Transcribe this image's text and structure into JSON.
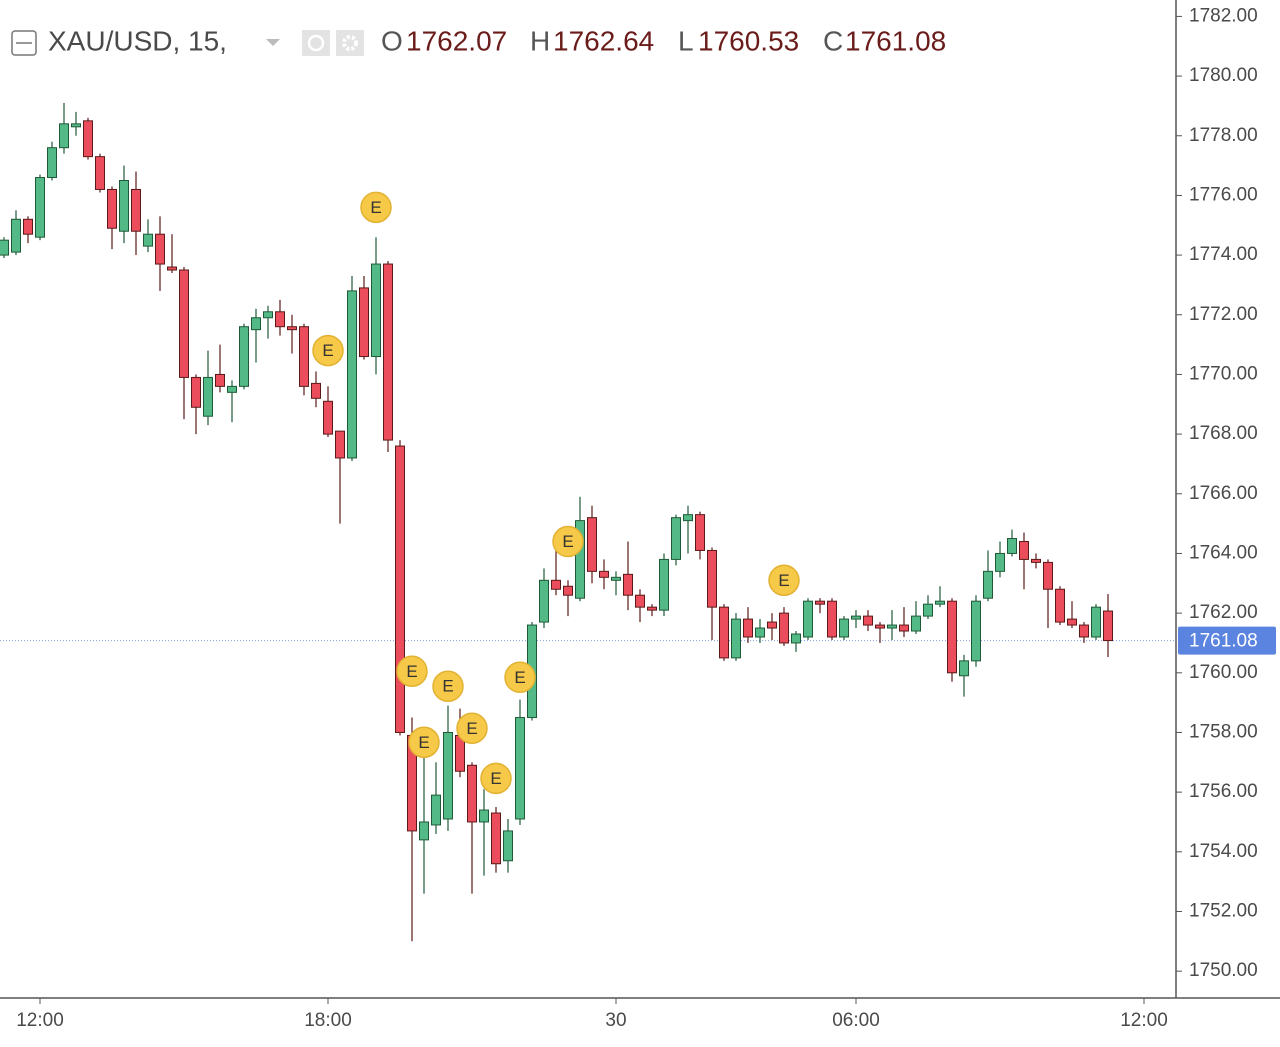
{
  "chart_data": {
    "type": "candlestick",
    "legend": {
      "symbol": "XAU/USD, 15,",
      "items": [
        {
          "label": "O",
          "value": 1762.07
        },
        {
          "label": "H",
          "value": 1762.64
        },
        {
          "label": "L",
          "value": 1760.53
        },
        {
          "label": "C",
          "value": 1761.08
        }
      ]
    },
    "last_price": 1761.08,
    "up_color": "#53b987",
    "down_color": "#eb4d5c",
    "ylim": [
      1749.1,
      1782.55
    ],
    "yticks": [
      {
        "value": 1750,
        "label": "1750.00"
      },
      {
        "value": 1752,
        "label": "1752.00"
      },
      {
        "value": 1754,
        "label": "1754.00"
      },
      {
        "value": 1756,
        "label": "1756.00"
      },
      {
        "value": 1758,
        "label": "1758.00"
      },
      {
        "value": 1760,
        "label": "1760.00"
      },
      {
        "value": 1762,
        "label": "1762.00"
      },
      {
        "value": 1764,
        "label": "1764.00"
      },
      {
        "value": 1766,
        "label": "1766.00"
      },
      {
        "value": 1768,
        "label": "1768.00"
      },
      {
        "value": 1770,
        "label": "1770.00"
      },
      {
        "value": 1772,
        "label": "1772.00"
      },
      {
        "value": 1774,
        "label": "1774.00"
      },
      {
        "value": 1776,
        "label": "1776.00"
      },
      {
        "value": 1778,
        "label": "1778.00"
      },
      {
        "value": 1780,
        "label": "1780.00"
      },
      {
        "value": 1782,
        "label": "1782.00"
      }
    ],
    "categories": [
      null,
      null,
      null,
      "12:00",
      null,
      null,
      null,
      null,
      null,
      null,
      null,
      null,
      null,
      null,
      null,
      null,
      null,
      null,
      null,
      null,
      null,
      null,
      null,
      null,
      null,
      null,
      null,
      "18:00",
      null,
      null,
      null,
      null,
      null,
      null,
      null,
      null,
      null,
      null,
      null,
      null,
      null,
      null,
      null,
      null,
      null,
      null,
      null,
      null,
      null,
      null,
      null,
      "30",
      null,
      null,
      null,
      null,
      null,
      null,
      null,
      null,
      null,
      null,
      null,
      null,
      null,
      null,
      null,
      null,
      null,
      null,
      null,
      "06:00",
      null,
      null,
      null,
      null,
      null,
      null,
      null,
      null,
      null,
      null,
      null,
      null,
      null,
      null,
      null,
      null,
      null,
      null,
      null,
      null,
      null,
      null,
      null,
      "12:00"
    ],
    "open": [
      1774.0,
      1774.1,
      1775.2,
      1774.6,
      1776.6,
      1777.6,
      1778.3,
      1778.5,
      1777.3,
      1776.2,
      1774.8,
      1776.2,
      1774.3,
      1774.7,
      1773.6,
      1773.5,
      1769.9,
      1768.6,
      1770.0,
      1769.4,
      1769.6,
      1771.5,
      1771.9,
      1772.1,
      1771.6,
      1771.6,
      1769.7,
      1769.1,
      1768.1,
      1767.2,
      1772.9,
      1770.6,
      1773.7,
      1767.6,
      1757.9,
      1754.4,
      1754.9,
      1755.1,
      1757.9,
      1756.9,
      1755.0,
      1755.3,
      1753.7,
      1755.1,
      1758.5,
      1761.7,
      1763.1,
      1762.9,
      1762.5,
      1765.2,
      1763.4,
      1763.1,
      1763.3,
      1762.6,
      1762.2,
      1762.1,
      1763.8,
      1765.1,
      1765.3,
      1764.1,
      1762.2,
      1760.5,
      1761.8,
      1761.2,
      1761.7,
      1762.0,
      1761.0,
      1761.2,
      1762.4,
      1762.4,
      1761.2,
      1761.8,
      1761.9,
      1761.6,
      1761.5,
      1761.6,
      1761.4,
      1761.9,
      1762.3,
      1762.4,
      1759.9,
      1760.4,
      1762.5,
      1763.4,
      1764.0,
      1764.4,
      1763.8,
      1763.7,
      1762.8,
      1761.8,
      1761.6,
      1761.2,
      1762.07,
      null,
      null,
      null
    ],
    "high": [
      1774.6,
      1775.5,
      1775.3,
      1776.7,
      1777.8,
      1779.1,
      1778.8,
      1778.6,
      1777.4,
      1776.3,
      1777.0,
      1776.8,
      1775.2,
      1775.3,
      1774.7,
      1773.6,
      1770.0,
      1770.8,
      1771.0,
      1769.8,
      1771.7,
      1772.2,
      1772.3,
      1772.5,
      1772.0,
      1771.7,
      1770.1,
      1769.6,
      1768.1,
      1773.3,
      1773.3,
      1774.6,
      1773.8,
      1767.8,
      1758.5,
      1757.9,
      1757.0,
      1758.9,
      1758.8,
      1757.0,
      1756.1,
      1755.5,
      1755.1,
      1759.1,
      1761.7,
      1763.5,
      1764.5,
      1763.1,
      1765.9,
      1765.6,
      1763.8,
      1763.4,
      1764.4,
      1762.8,
      1762.3,
      1764.0,
      1765.3,
      1765.6,
      1765.4,
      1764.2,
      1762.3,
      1762.0,
      1762.2,
      1761.8,
      1762.0,
      1762.2,
      1761.4,
      1762.5,
      1762.5,
      1762.5,
      1761.9,
      1762.1,
      1762.1,
      1761.7,
      1762.1,
      1762.2,
      1762.4,
      1762.6,
      1762.9,
      1762.5,
      1760.6,
      1762.6,
      1764.1,
      1764.4,
      1764.8,
      1764.7,
      1764.0,
      1763.8,
      1762.9,
      1762.4,
      1761.7,
      1762.3,
      1762.64,
      null,
      null,
      null
    ],
    "low": [
      1773.9,
      1774.0,
      1774.4,
      1774.5,
      1776.5,
      1777.4,
      1778.0,
      1777.2,
      1776.1,
      1774.2,
      1774.4,
      1774.0,
      1774.1,
      1772.8,
      1773.4,
      1768.5,
      1768.0,
      1768.3,
      1769.4,
      1768.4,
      1769.5,
      1770.4,
      1771.2,
      1771.3,
      1770.7,
      1769.3,
      1768.9,
      1767.9,
      1765.0,
      1767.1,
      1770.5,
      1770.0,
      1767.4,
      1757.9,
      1751.0,
      1752.6,
      1754.6,
      1754.7,
      1756.5,
      1752.6,
      1753.2,
      1753.3,
      1753.3,
      1754.9,
      1758.4,
      1761.5,
      1762.6,
      1761.9,
      1762.4,
      1763.0,
      1762.8,
      1762.6,
      1762.1,
      1761.7,
      1761.9,
      1761.9,
      1763.6,
      1764.0,
      1763.8,
      1761.1,
      1760.4,
      1760.4,
      1761.0,
      1761.0,
      1761.1,
      1760.9,
      1760.7,
      1761.1,
      1762.0,
      1761.1,
      1761.1,
      1761.5,
      1761.4,
      1761.0,
      1761.1,
      1761.2,
      1761.3,
      1761.8,
      1762.2,
      1759.7,
      1759.2,
      1760.2,
      1762.4,
      1763.2,
      1763.9,
      1762.8,
      1763.5,
      1761.5,
      1761.6,
      1761.5,
      1761.0,
      1761.1,
      1760.53,
      null,
      null,
      null
    ],
    "close": [
      1774.5,
      1775.2,
      1774.7,
      1776.6,
      1777.6,
      1778.4,
      1778.4,
      1777.3,
      1776.2,
      1774.9,
      1776.5,
      1774.8,
      1774.7,
      1773.7,
      1773.5,
      1769.9,
      1768.9,
      1769.9,
      1769.6,
      1769.6,
      1771.6,
      1771.9,
      1772.1,
      1771.6,
      1771.5,
      1769.6,
      1769.2,
      1768.0,
      1767.2,
      1772.8,
      1770.6,
      1773.7,
      1767.8,
      1758.0,
      1754.7,
      1755.0,
      1755.9,
      1758.0,
      1756.7,
      1755.0,
      1755.4,
      1753.6,
      1754.7,
      1758.5,
      1761.6,
      1763.1,
      1762.8,
      1762.6,
      1765.1,
      1763.4,
      1763.2,
      1763.2,
      1762.6,
      1762.2,
      1762.1,
      1763.8,
      1765.2,
      1765.3,
      1764.1,
      1762.2,
      1760.5,
      1761.8,
      1761.2,
      1761.5,
      1761.5,
      1761.0,
      1761.3,
      1762.4,
      1762.3,
      1761.2,
      1761.8,
      1761.9,
      1761.6,
      1761.5,
      1761.6,
      1761.4,
      1761.9,
      1762.3,
      1762.4,
      1760.0,
      1760.4,
      1762.4,
      1763.4,
      1764.0,
      1764.5,
      1763.8,
      1763.7,
      1762.8,
      1761.7,
      1761.6,
      1761.2,
      1762.2,
      1761.08,
      null,
      null,
      null
    ],
    "events": [
      {
        "label": "E",
        "x": 27,
        "y": 1770.8
      },
      {
        "label": "E",
        "x": 31,
        "y": 1775.6
      },
      {
        "label": "E",
        "x": 34,
        "y": 1760.05
      },
      {
        "label": "E",
        "x": 35,
        "y": 1757.67
      },
      {
        "label": "E",
        "x": 37,
        "y": 1759.55
      },
      {
        "label": "E",
        "x": 39,
        "y": 1758.14
      },
      {
        "label": "E",
        "x": 41,
        "y": 1756.46
      },
      {
        "label": "E",
        "x": 43,
        "y": 1759.85
      },
      {
        "label": "E",
        "x": 47,
        "y": 1764.4
      },
      {
        "label": "E",
        "x": 65,
        "y": 1763.1
      }
    ]
  }
}
